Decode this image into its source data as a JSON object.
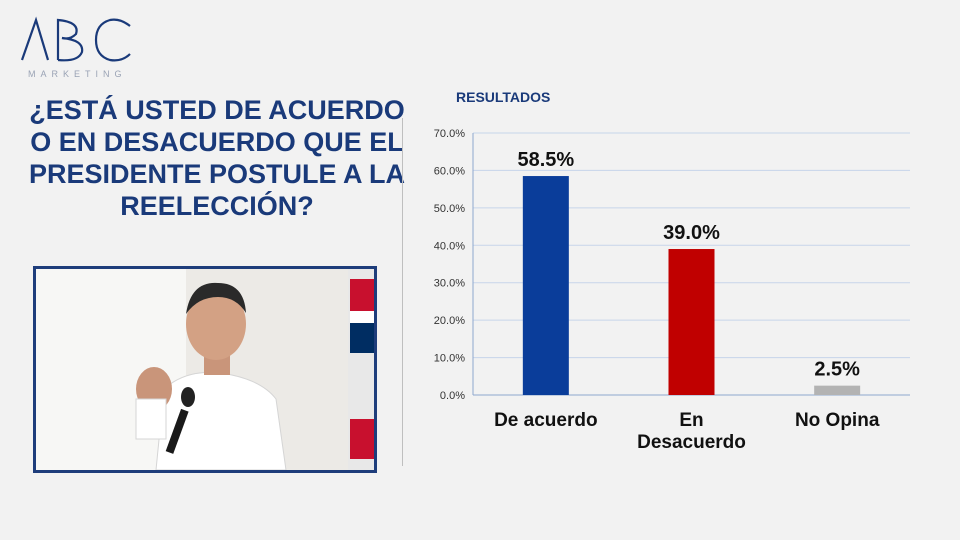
{
  "logo": {
    "letters": "ABC",
    "subtitle": "MARKETING"
  },
  "question": "¿ESTÁ USTED DE ACUERDO O EN DESACUERDO QUE EL PRESIDENTE POSTULE A LA REELECCIÓN?",
  "results_title": "RESULTADOS",
  "colors": {
    "brand": "#1a3a7a",
    "frame": "#1e3d7b"
  },
  "chart_data": {
    "type": "bar",
    "categories": [
      [
        "De acuerdo"
      ],
      [
        "En",
        "Desacuerdo"
      ],
      [
        "No Opina"
      ]
    ],
    "values": [
      58.5,
      39.0,
      2.5
    ],
    "value_labels": [
      "58.5%",
      "39.0%",
      "2.5%"
    ],
    "colors": [
      "#0a3d9a",
      "#c00000",
      "#b3b3b3"
    ],
    "ylim": [
      0,
      70
    ],
    "yticks": [
      "0.0%",
      "10.0%",
      "20.0%",
      "30.0%",
      "40.0%",
      "50.0%",
      "60.0%",
      "70.0%"
    ],
    "grid": true,
    "legend": "none"
  }
}
